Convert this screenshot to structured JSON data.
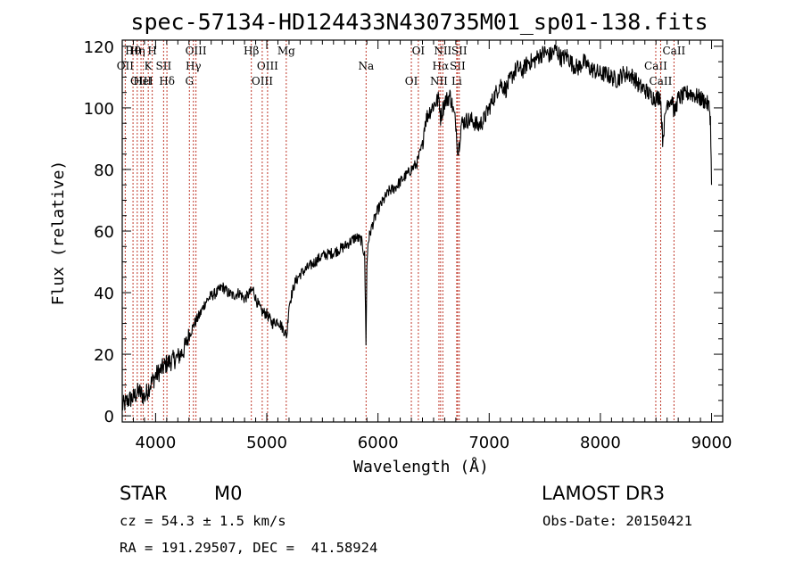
{
  "chart_data": {
    "type": "line",
    "title": "spec-57134-HD124433N430735M01_sp01-138.fits",
    "xlabel": "Wavelength (Å)",
    "ylabel": "Flux (relative)",
    "xlim": [
      3700,
      9100
    ],
    "ylim": [
      -2,
      122
    ],
    "xticks": [
      4000,
      5000,
      6000,
      7000,
      8000,
      9000
    ],
    "yticks": [
      0,
      20,
      40,
      60,
      80,
      100,
      120
    ],
    "series": [
      {
        "name": "flux",
        "x": [
          3700,
          3750,
          3800,
          3850,
          3900,
          3950,
          4000,
          4050,
          4100,
          4150,
          4200,
          4250,
          4300,
          4350,
          4400,
          4450,
          4500,
          4550,
          4600,
          4650,
          4700,
          4750,
          4800,
          4850,
          4880,
          4900,
          4950,
          5000,
          5050,
          5100,
          5150,
          5180,
          5200,
          5250,
          5300,
          5400,
          5500,
          5600,
          5700,
          5800,
          5850,
          5880,
          5892,
          5900,
          5910,
          5920,
          5950,
          6000,
          6050,
          6100,
          6150,
          6200,
          6250,
          6300,
          6350,
          6400,
          6420,
          6450,
          6500,
          6550,
          6563,
          6600,
          6650,
          6700,
          6720,
          6750,
          6800,
          6850,
          6900,
          6950,
          7000,
          7050,
          7100,
          7150,
          7200,
          7250,
          7300,
          7350,
          7400,
          7450,
          7500,
          7550,
          7600,
          7650,
          7700,
          7750,
          7800,
          7850,
          7900,
          7950,
          8000,
          8050,
          8100,
          8150,
          8200,
          8250,
          8300,
          8350,
          8400,
          8450,
          8500,
          8540,
          8560,
          8600,
          8650,
          8662,
          8700,
          8750,
          8800,
          8850,
          8900,
          8950,
          8980,
          8990,
          9000
        ],
        "y": [
          3,
          5,
          6,
          8,
          6,
          10,
          13,
          15,
          17,
          18,
          19,
          21,
          26,
          30,
          33,
          37,
          39,
          40,
          42,
          40,
          39,
          40,
          38,
          40,
          41,
          38,
          34,
          33,
          30,
          31,
          28,
          26,
          36,
          43,
          46,
          49,
          52,
          53,
          55,
          58,
          57,
          52,
          24,
          48,
          56,
          58,
          62,
          67,
          70,
          73,
          74,
          76,
          78,
          80,
          82,
          88,
          95,
          98,
          101,
          103,
          97,
          102,
          104,
          95,
          85,
          95,
          96,
          96,
          94,
          96,
          100,
          104,
          108,
          106,
          110,
          113,
          112,
          115,
          115,
          117,
          118,
          117,
          119,
          116,
          117,
          114,
          113,
          115,
          113,
          112,
          111,
          111,
          110,
          109,
          111,
          111,
          110,
          107,
          106,
          104,
          103,
          104,
          90,
          102,
          103,
          98,
          103,
          104,
          105,
          104,
          103,
          102,
          100,
          96,
          75
        ]
      }
    ],
    "spectral_lines": [
      {
        "label": "Hθ",
        "wavelength": 3797
      },
      {
        "label": "OII",
        "wavelength": 3727
      },
      {
        "label": "OIII",
        "wavelength": 3869
      },
      {
        "label": "Hη",
        "wavelength": 3835
      },
      {
        "label": "K",
        "wavelength": 3934
      },
      {
        "label": "HeI",
        "wavelength": 3889
      },
      {
        "label": "H",
        "wavelength": 3970
      },
      {
        "label": "SII",
        "wavelength": 4072
      },
      {
        "label": "Hδ",
        "wavelength": 4102
      },
      {
        "label": "OIII",
        "wavelength": 4363
      },
      {
        "label": "Hγ",
        "wavelength": 4340
      },
      {
        "label": "G",
        "wavelength": 4304
      },
      {
        "label": "Hβ",
        "wavelength": 4861
      },
      {
        "label": "OIII",
        "wavelength": 5007
      },
      {
        "label": "OIII",
        "wavelength": 4959
      },
      {
        "label": "Mg",
        "wavelength": 5175
      },
      {
        "label": "Na",
        "wavelength": 5893
      },
      {
        "label": "OI",
        "wavelength": 6300
      },
      {
        "label": "OI",
        "wavelength": 6363
      },
      {
        "label": "Hα",
        "wavelength": 6563
      },
      {
        "label": "NII",
        "wavelength": 6548
      },
      {
        "label": "NII",
        "wavelength": 6583
      },
      {
        "label": "SII",
        "wavelength": 6716
      },
      {
        "label": "Li",
        "wavelength": 6708
      },
      {
        "label": "SII",
        "wavelength": 6731
      },
      {
        "label": "CaII",
        "wavelength": 8498
      },
      {
        "label": "CaII",
        "wavelength": 8542
      },
      {
        "label": "CaII",
        "wavelength": 8662
      }
    ]
  },
  "info": {
    "object_class": "STAR",
    "subclass": "M0",
    "survey": "LAMOST DR3",
    "redshift_line": "cz = 54.3 ± 1.5 km/s",
    "obs_date_line": "Obs-Date: 20150421",
    "coords_line": "RA = 191.29507, DEC =  41.58924"
  },
  "colors": {
    "line_marker": "#c0392b",
    "spectrum": "#000000"
  }
}
